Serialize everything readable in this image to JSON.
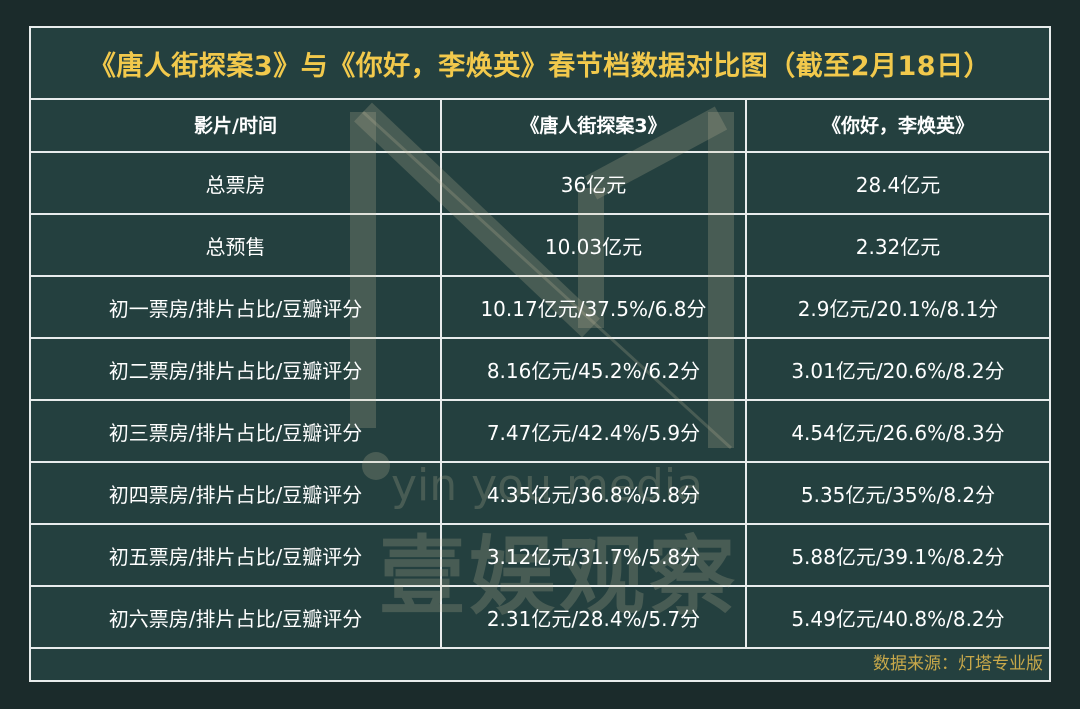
{
  "title": "《唐人街探案3》与《你好，李焕英》春节档数据对比图（截至2月18日）",
  "table": {
    "headers": [
      "影片/时间",
      "《唐人街探案3》",
      "《你好，李焕英》"
    ],
    "rows": [
      [
        "总票房",
        "36亿元",
        "28.4亿元"
      ],
      [
        "总预售",
        "10.03亿元",
        "2.32亿元"
      ],
      [
        "初一票房/排片占比/豆瓣评分",
        "10.17亿元/37.5%/6.8分",
        "2.9亿元/20.1%/8.1分"
      ],
      [
        "初二票房/排片占比/豆瓣评分",
        "8.16亿元/45.2%/6.2分",
        "3.01亿元/20.6%/8.2分"
      ],
      [
        "初三票房/排片占比/豆瓣评分",
        "7.47亿元/42.4%/5.9分",
        "4.54亿元/26.6%/8.3分"
      ],
      [
        "初四票房/排片占比/豆瓣评分",
        "4.35亿元/36.8%/5.8分",
        "5.35亿元/35%/8.2分"
      ],
      [
        "初五票房/排片占比/豆瓣评分",
        "3.12亿元/31.7%/5.8分",
        "5.88亿元/39.1%/8.2分"
      ],
      [
        "初六票房/排片占比/豆瓣评分",
        "2.31亿元/28.4%/5.7分",
        "5.49亿元/40.8%/8.2分"
      ]
    ]
  },
  "source": "数据来源：灯塔专业版",
  "watermark": {
    "main": "壹娱观察",
    "sub": "yin you media"
  },
  "colors": {
    "background": "#1b2b2b",
    "table_bg": "#24403f",
    "title": "#f2c94c",
    "source": "#c8a84a",
    "border": "#e8ecec"
  }
}
